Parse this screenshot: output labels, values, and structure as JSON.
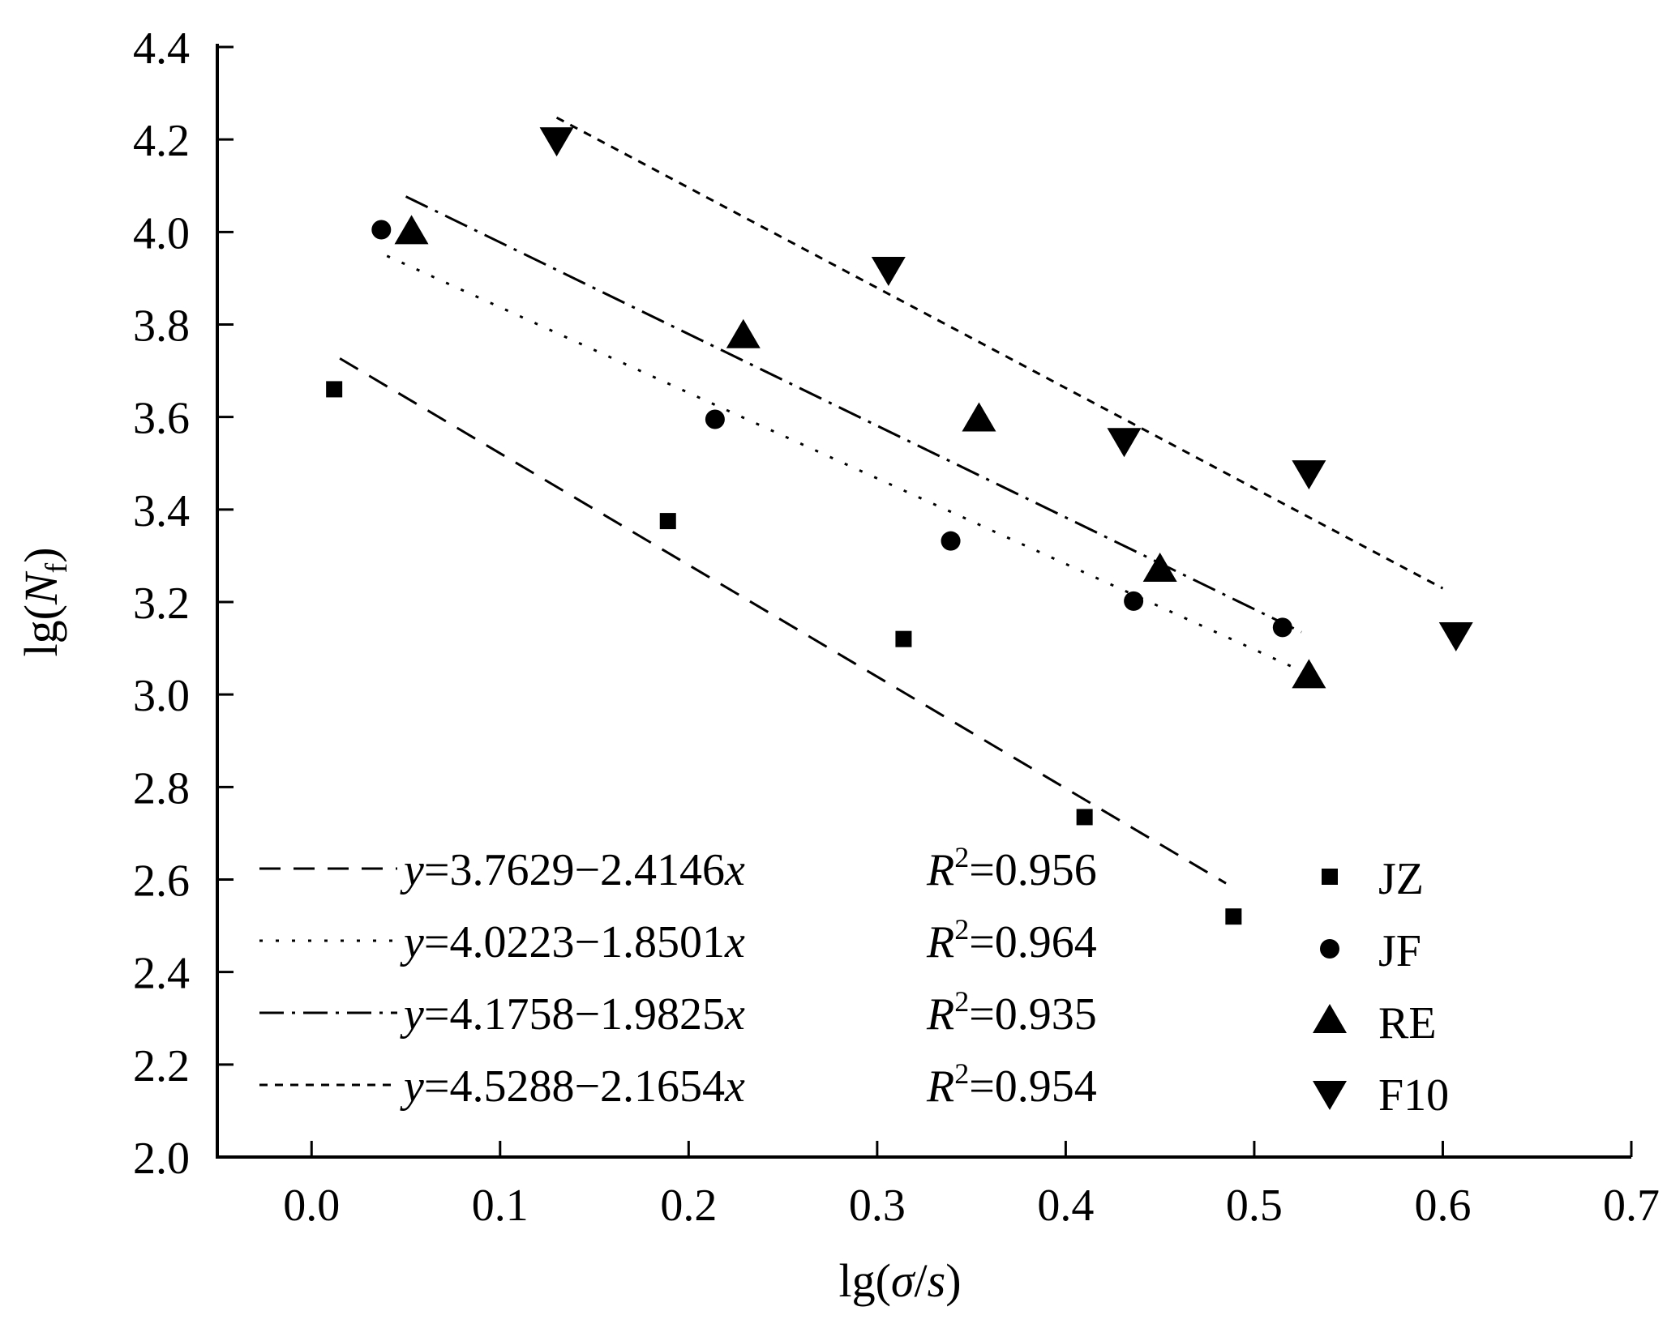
{
  "chart_data": {
    "type": "scatter",
    "xlabel": {
      "prefix": "lg(",
      "var1": "σ",
      "sep": "/",
      "var2": "s",
      "suffix": ")"
    },
    "ylabel": {
      "prefix": "lg(",
      "var": "N",
      "sub": "f",
      "suffix": ")"
    },
    "xlim": [
      -0.05,
      0.7
    ],
    "ylim": [
      2.0,
      4.4
    ],
    "xticks": [
      "0.0",
      "0.1",
      "0.2",
      "0.3",
      "0.4",
      "0.5",
      "0.6",
      "0.7"
    ],
    "xtick_values": [
      0.0,
      0.1,
      0.2,
      0.3,
      0.4,
      0.5,
      0.6,
      0.7
    ],
    "yticks": [
      "2.0",
      "2.2",
      "2.4",
      "2.6",
      "2.8",
      "3.0",
      "3.2",
      "3.4",
      "3.6",
      "3.8",
      "4.0",
      "4.2",
      "4.4"
    ],
    "ytick_values": [
      2.0,
      2.2,
      2.4,
      2.6,
      2.8,
      3.0,
      3.2,
      3.4,
      3.6,
      3.8,
      4.0,
      4.2,
      4.4
    ],
    "grid": false,
    "series": [
      {
        "name": "JZ",
        "marker": "square",
        "points": [
          [
            0.012,
            3.66
          ],
          [
            0.189,
            3.375
          ],
          [
            0.314,
            3.12
          ],
          [
            0.41,
            2.735
          ],
          [
            0.489,
            2.52
          ]
        ],
        "fit": {
          "intercept": 3.7629,
          "slope": -2.4146,
          "x_range": [
            0.015,
            0.485
          ],
          "dash": "dashed",
          "equation": "=3.7629−2.4146",
          "r2": "=0.956"
        }
      },
      {
        "name": "JF",
        "marker": "circle",
        "points": [
          [
            0.037,
            4.005
          ],
          [
            0.214,
            3.595
          ],
          [
            0.339,
            3.332
          ],
          [
            0.436,
            3.202
          ],
          [
            0.515,
            3.145
          ]
        ],
        "fit": {
          "intercept": 4.0223,
          "slope": -1.8501,
          "x_range": [
            0.04,
            0.52
          ],
          "dash": "dotted",
          "equation": "=4.0223−1.8501",
          "r2": "=0.964"
        }
      },
      {
        "name": "RE",
        "marker": "triangle-up",
        "points": [
          [
            0.053,
            4.0
          ],
          [
            0.229,
            3.775
          ],
          [
            0.354,
            3.595
          ],
          [
            0.45,
            3.27
          ],
          [
            0.529,
            3.04
          ]
        ],
        "fit": {
          "intercept": 4.1758,
          "slope": -1.9825,
          "x_range": [
            0.05,
            0.525
          ],
          "dash": "dash-dot",
          "equation": "=4.1758−1.9825",
          "r2": "=0.935"
        }
      },
      {
        "name": "F10",
        "marker": "triangle-down",
        "points": [
          [
            0.13,
            4.2
          ],
          [
            0.306,
            3.92
          ],
          [
            0.431,
            3.55
          ],
          [
            0.529,
            3.48
          ],
          [
            0.607,
            3.13
          ]
        ],
        "fit": {
          "intercept": 4.5288,
          "slope": -2.1654,
          "x_range": [
            0.13,
            0.6
          ],
          "dash": "short-dash",
          "equation": "=4.5288−2.1654",
          "r2": "=0.954"
        }
      }
    ],
    "equation_vars": {
      "y": "y",
      "x": "x",
      "r": "R",
      "sup": "2"
    },
    "legend_placement": "bottom-right"
  }
}
